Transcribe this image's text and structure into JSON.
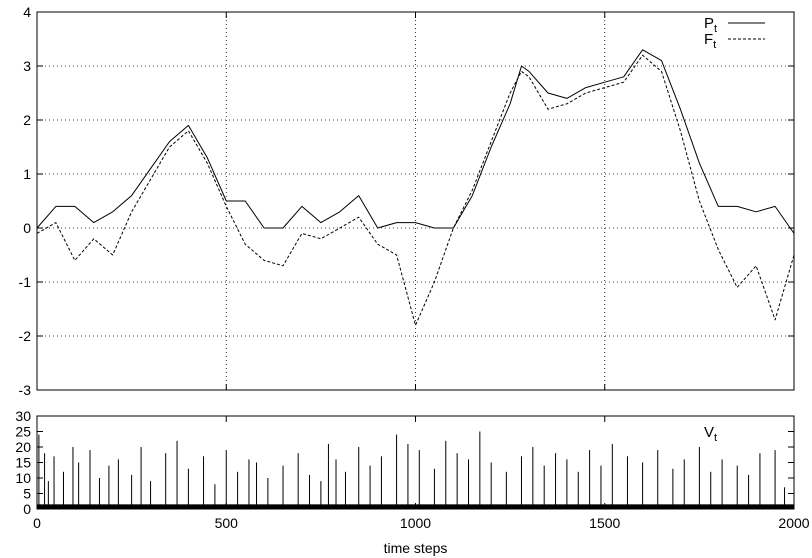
{
  "chart_data": [
    {
      "type": "line",
      "panel": "top",
      "xlim": [
        0,
        2000
      ],
      "ylim": [
        -3,
        4
      ],
      "xticks": [
        0,
        500,
        1000,
        1500,
        2000
      ],
      "yticks": [
        -3,
        -2,
        -1,
        0,
        1,
        2,
        3,
        4
      ],
      "ytick_labels": [
        "-3",
        "-2",
        "-1",
        "0",
        "1",
        "2",
        "3",
        "4"
      ],
      "grid": true,
      "legend_position": "top-right",
      "series": [
        {
          "name": "P",
          "name_sub": "t",
          "style": "solid",
          "x": [
            0,
            50,
            100,
            150,
            200,
            250,
            300,
            350,
            400,
            450,
            500,
            550,
            600,
            650,
            700,
            750,
            800,
            850,
            900,
            950,
            1000,
            1050,
            1100,
            1150,
            1200,
            1250,
            1280,
            1300,
            1350,
            1400,
            1450,
            1500,
            1550,
            1600,
            1650,
            1700,
            1750,
            1800,
            1850,
            1900,
            1950,
            2000
          ],
          "y": [
            0.0,
            0.4,
            0.4,
            0.1,
            0.3,
            0.6,
            1.1,
            1.6,
            1.9,
            1.3,
            0.5,
            0.5,
            0.0,
            0.0,
            0.4,
            0.1,
            0.3,
            0.6,
            0.0,
            0.1,
            0.1,
            0.0,
            0.0,
            0.6,
            1.5,
            2.3,
            3.0,
            2.9,
            2.5,
            2.4,
            2.6,
            2.7,
            2.8,
            3.3,
            3.1,
            2.2,
            1.2,
            0.4,
            0.4,
            0.3,
            0.4,
            -0.1
          ]
        },
        {
          "name": "F",
          "name_sub": "t",
          "style": "dashed",
          "x": [
            0,
            50,
            100,
            150,
            200,
            250,
            300,
            350,
            400,
            450,
            500,
            550,
            600,
            650,
            700,
            750,
            800,
            850,
            900,
            950,
            1000,
            1050,
            1100,
            1150,
            1200,
            1250,
            1280,
            1300,
            1350,
            1400,
            1450,
            1500,
            1550,
            1600,
            1650,
            1700,
            1750,
            1800,
            1850,
            1900,
            1950,
            2000
          ],
          "y": [
            -0.1,
            0.1,
            -0.6,
            -0.2,
            -0.5,
            0.3,
            0.9,
            1.5,
            1.8,
            1.2,
            0.4,
            -0.3,
            -0.6,
            -0.7,
            -0.1,
            -0.2,
            0.0,
            0.2,
            -0.3,
            -0.5,
            -1.8,
            -1.0,
            0.0,
            0.7,
            1.6,
            2.5,
            2.9,
            2.8,
            2.2,
            2.3,
            2.5,
            2.6,
            2.7,
            3.2,
            2.9,
            1.8,
            0.5,
            -0.4,
            -1.1,
            -0.7,
            -1.7,
            -0.5
          ]
        }
      ]
    },
    {
      "type": "bar",
      "panel": "bottom",
      "xlabel": "time steps",
      "xlim": [
        0,
        2000
      ],
      "ylim": [
        0,
        30
      ],
      "xticks": [
        0,
        500,
        1000,
        1500,
        2000
      ],
      "xtick_labels": [
        "0",
        "500",
        "1000",
        "1500",
        "2000"
      ],
      "yticks": [
        0,
        5,
        10,
        15,
        20,
        25,
        30
      ],
      "ytick_labels": [
        "0",
        "5",
        "10",
        "15",
        "20",
        "25",
        "30"
      ],
      "grid": false,
      "series": [
        {
          "name": "V",
          "name_sub": "t",
          "x": [
            5,
            20,
            30,
            45,
            70,
            95,
            110,
            140,
            165,
            190,
            215,
            250,
            275,
            300,
            340,
            370,
            400,
            440,
            470,
            500,
            530,
            560,
            580,
            610,
            650,
            690,
            720,
            750,
            770,
            790,
            815,
            850,
            880,
            910,
            950,
            980,
            1010,
            1050,
            1080,
            1110,
            1140,
            1170,
            1200,
            1240,
            1280,
            1310,
            1340,
            1370,
            1400,
            1430,
            1460,
            1490,
            1520,
            1560,
            1600,
            1640,
            1680,
            1710,
            1750,
            1780,
            1810,
            1850,
            1880,
            1910,
            1950,
            1975
          ],
          "values": [
            24,
            18,
            9,
            17,
            12,
            20,
            15,
            19,
            10,
            14,
            16,
            11,
            20,
            9,
            18,
            22,
            13,
            17,
            8,
            19,
            12,
            16,
            15,
            10,
            14,
            18,
            11,
            9,
            21,
            16,
            12,
            20,
            14,
            17,
            24,
            21,
            19,
            13,
            22,
            18,
            16,
            25,
            15,
            12,
            17,
            20,
            14,
            18,
            16,
            12,
            19,
            14,
            21,
            17,
            15,
            19,
            13,
            16,
            20,
            12,
            16,
            14,
            11,
            18,
            19,
            7
          ]
        }
      ]
    }
  ]
}
